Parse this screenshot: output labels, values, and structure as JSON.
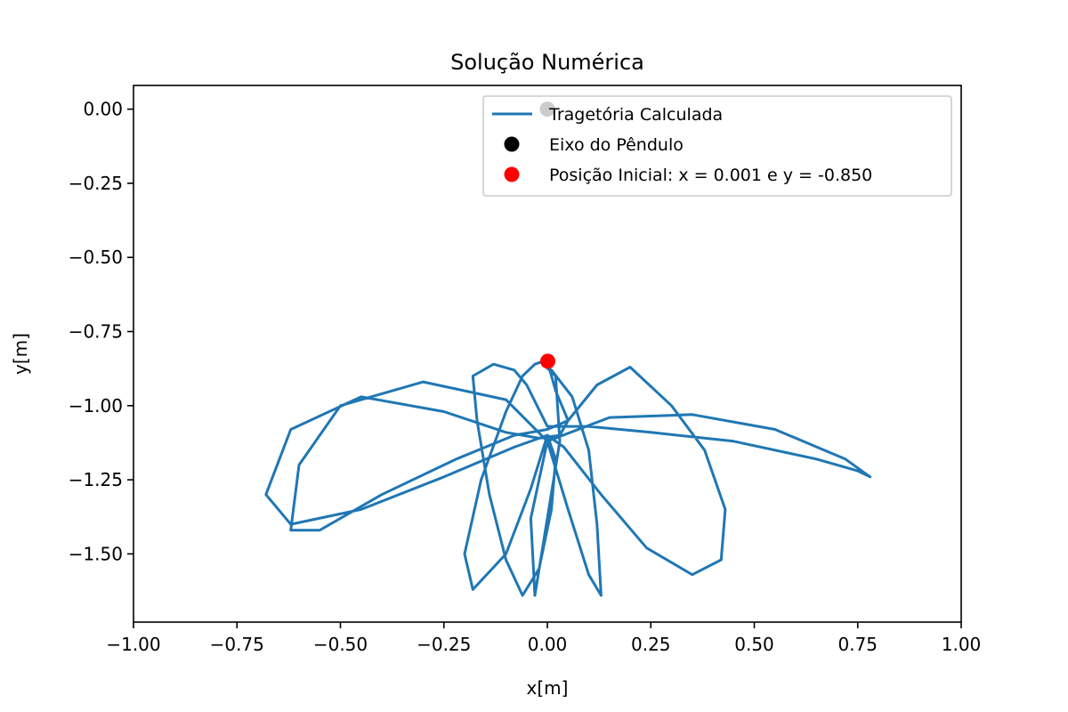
{
  "chart_data": {
    "type": "line",
    "title": "Solução Numérica",
    "xlabel": "x[m]",
    "ylabel": "y[m]",
    "xlim": [
      -1.0,
      1.0
    ],
    "ylim": [
      -1.73,
      0.08
    ],
    "xticks": [
      -1.0,
      -0.75,
      -0.5,
      -0.25,
      0.0,
      0.25,
      0.5,
      0.75,
      1.0
    ],
    "xtick_labels": [
      "−1.00",
      "−0.75",
      "−0.50",
      "−0.25",
      "0.00",
      "0.25",
      "0.50",
      "0.75",
      "1.00"
    ],
    "yticks": [
      0.0,
      -0.25,
      -0.5,
      -0.75,
      -1.0,
      -1.25,
      -1.5
    ],
    "ytick_labels": [
      "0.00",
      "−0.25",
      "−0.50",
      "−0.75",
      "−1.00",
      "−1.25",
      "−1.50"
    ],
    "grid": false,
    "legend_position": "top-right",
    "series": [
      {
        "name": "Tragetória Calculada",
        "kind": "line",
        "color": "#1f77b4",
        "x": [
          0.0,
          0.02,
          0.05,
          0.03,
          -0.02,
          -0.1,
          -0.25,
          -0.45,
          -0.62,
          -0.68,
          -0.62,
          -0.45,
          -0.25,
          -0.08,
          0.0,
          0.02,
          0.01,
          -0.02,
          -0.06,
          -0.1,
          -0.14,
          -0.17,
          -0.18,
          -0.13,
          -0.08,
          -0.05,
          0.0,
          0.1,
          0.25,
          0.45,
          0.65,
          0.75,
          0.78,
          0.72,
          0.55,
          0.35,
          0.15,
          0.0,
          -0.04,
          -0.03,
          0.0,
          0.03,
          0.02,
          -0.01,
          0.01,
          0.06,
          0.1,
          0.12,
          0.13,
          0.1,
          0.05,
          0.0,
          -0.1,
          -0.3,
          -0.5,
          -0.6,
          -0.62,
          -0.55,
          -0.4,
          -0.22,
          -0.08,
          0.0,
          0.05,
          0.12,
          0.2,
          0.3,
          0.38,
          0.43,
          0.42,
          0.35,
          0.24,
          0.13,
          0.04,
          0.0,
          -0.04,
          -0.1,
          -0.18,
          -0.2,
          -0.16,
          -0.1,
          -0.06,
          -0.03,
          -0.01,
          0.0
        ],
        "y": [
          -0.85,
          -0.95,
          -1.05,
          -1.1,
          -1.11,
          -1.09,
          -1.02,
          -0.97,
          -1.08,
          -1.3,
          -1.4,
          -1.35,
          -1.24,
          -1.14,
          -1.1,
          -1.18,
          -1.35,
          -1.55,
          -1.64,
          -1.52,
          -1.3,
          -1.05,
          -0.9,
          -0.86,
          -0.88,
          -0.93,
          -1.07,
          -1.07,
          -1.09,
          -1.12,
          -1.18,
          -1.22,
          -1.24,
          -1.18,
          -1.08,
          -1.03,
          -1.04,
          -1.12,
          -1.38,
          -1.64,
          -1.38,
          -1.12,
          -0.9,
          -0.86,
          -0.88,
          -0.97,
          -1.15,
          -1.4,
          -1.64,
          -1.57,
          -1.35,
          -1.12,
          -0.98,
          -0.92,
          -1.0,
          -1.2,
          -1.42,
          -1.42,
          -1.3,
          -1.18,
          -1.1,
          -1.08,
          -1.05,
          -0.93,
          -0.87,
          -1.0,
          -1.15,
          -1.35,
          -1.52,
          -1.57,
          -1.48,
          -1.3,
          -1.14,
          -1.1,
          -1.28,
          -1.5,
          -1.62,
          -1.5,
          -1.25,
          -1.02,
          -0.9,
          -0.86,
          -0.85,
          -0.85
        ]
      },
      {
        "name": "Eixo do Pêndulo",
        "kind": "point",
        "color": "#000000",
        "x": [
          0.0
        ],
        "y": [
          0.0
        ]
      },
      {
        "name": "Posição Inicial: x = 0.001 e y = -0.850",
        "kind": "point",
        "color": "#ff0000",
        "x": [
          0.001
        ],
        "y": [
          -0.85
        ]
      }
    ]
  }
}
